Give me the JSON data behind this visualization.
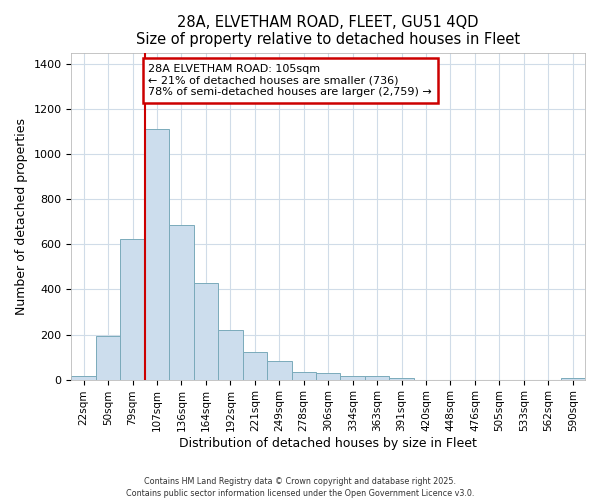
{
  "title_line1": "28A, ELVETHAM ROAD, FLEET, GU51 4QD",
  "title_line2": "Size of property relative to detached houses in Fleet",
  "xlabel": "Distribution of detached houses by size in Fleet",
  "ylabel": "Number of detached properties",
  "bar_labels": [
    "22sqm",
    "50sqm",
    "79sqm",
    "107sqm",
    "136sqm",
    "164sqm",
    "192sqm",
    "221sqm",
    "249sqm",
    "278sqm",
    "306sqm",
    "334sqm",
    "363sqm",
    "391sqm",
    "420sqm",
    "448sqm",
    "476sqm",
    "505sqm",
    "533sqm",
    "562sqm",
    "590sqm"
  ],
  "bar_values": [
    15,
    195,
    625,
    1113,
    688,
    430,
    222,
    123,
    83,
    35,
    28,
    15,
    15,
    5,
    0,
    0,
    0,
    0,
    0,
    0,
    5
  ],
  "bar_color": "#ccdded",
  "bar_edge_color": "#7aaabb",
  "property_line_x": 2.5,
  "property_label": "28A ELVETHAM ROAD: 105sqm",
  "annotation_line2": "← 21% of detached houses are smaller (736)",
  "annotation_line3": "78% of semi-detached houses are larger (2,759) →",
  "line_color": "#cc0000",
  "annotation_box_edge": "#cc0000",
  "ylim": [
    0,
    1450
  ],
  "yticks": [
    0,
    200,
    400,
    600,
    800,
    1000,
    1200,
    1400
  ],
  "footer1": "Contains HM Land Registry data © Crown copyright and database right 2025.",
  "footer2": "Contains public sector information licensed under the Open Government Licence v3.0.",
  "bg_color": "#ffffff",
  "grid_color": "#d0dce8"
}
